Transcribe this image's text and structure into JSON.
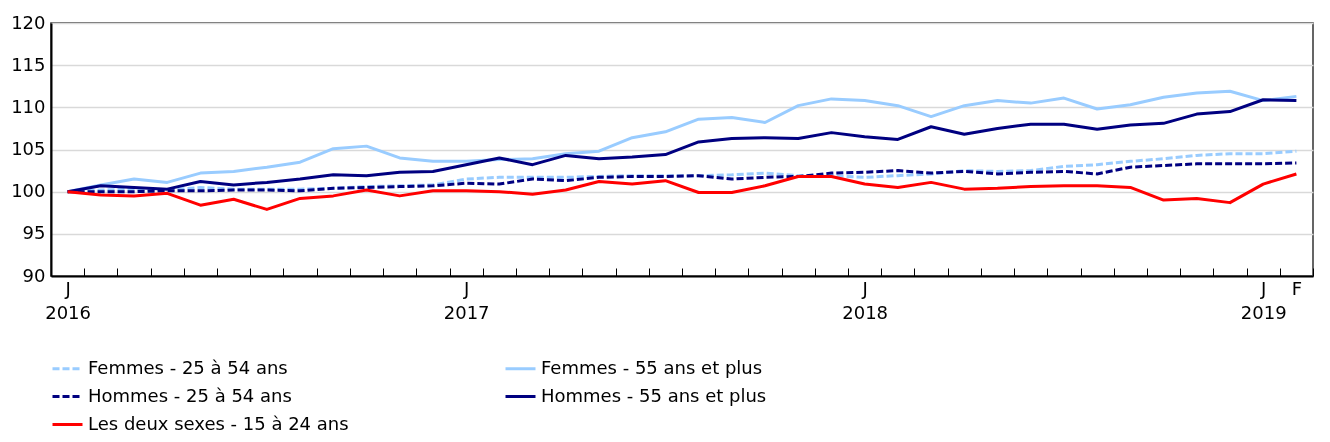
{
  "chart_data": {
    "type": "line",
    "categories": [
      "J 2016",
      null,
      null,
      null,
      null,
      null,
      null,
      null,
      null,
      null,
      null,
      null,
      "J 2017",
      null,
      null,
      null,
      null,
      null,
      null,
      null,
      null,
      null,
      null,
      null,
      "J 2018",
      null,
      null,
      null,
      null,
      null,
      null,
      null,
      null,
      null,
      null,
      null,
      "J 2019",
      "F"
    ],
    "ylim": [
      90,
      120
    ],
    "yticks": [
      90,
      95,
      100,
      105,
      110,
      115,
      120
    ],
    "grid": "y",
    "legend": "bottom",
    "series": [
      {
        "name": "Femmes - 25 à 54 ans",
        "color": "#99ccff",
        "line_style": "dashed",
        "values": [
          100,
          100.2,
          100.3,
          100.2,
          100.5,
          100.3,
          100.3,
          100.3,
          100.4,
          100.6,
          100.7,
          100.8,
          101.5,
          101.7,
          101.7,
          101.7,
          101.8,
          101.9,
          101.9,
          101.9,
          102.0,
          102.2,
          101.9,
          101.9,
          101.7,
          101.9,
          102.1,
          102.5,
          102.4,
          102.5,
          103.0,
          103.2,
          103.6,
          103.9,
          104.3,
          104.5,
          104.5,
          104.8
        ]
      },
      {
        "name": "Femmes - 55 ans et plus",
        "color": "#99ccff",
        "line_style": "solid",
        "values": [
          100,
          100.8,
          101.5,
          101.1,
          102.2,
          102.4,
          102.9,
          103.5,
          105.1,
          105.4,
          104.0,
          103.6,
          103.6,
          103.8,
          103.9,
          104.5,
          104.8,
          106.4,
          107.1,
          108.6,
          108.8,
          108.2,
          110.2,
          111.0,
          110.8,
          110.2,
          108.9,
          110.2,
          110.8,
          110.5,
          111.1,
          109.8,
          110.3,
          111.2,
          111.7,
          111.9,
          110.8,
          111.3
        ]
      },
      {
        "name": "Hommes - 25 à 54 ans",
        "color": "#000080",
        "line_style": "dashed",
        "values": [
          100,
          100,
          100,
          100.1,
          100.1,
          100.2,
          100.2,
          100.1,
          100.4,
          100.5,
          100.6,
          100.7,
          101.0,
          100.9,
          101.5,
          101.3,
          101.7,
          101.8,
          101.8,
          101.9,
          101.5,
          101.7,
          101.8,
          102.2,
          102.3,
          102.5,
          102.2,
          102.4,
          102.1,
          102.3,
          102.4,
          102.1,
          102.9,
          103.1,
          103.3,
          103.3,
          103.3,
          103.4
        ]
      },
      {
        "name": "Hommes - 55 ans et plus",
        "color": "#000080",
        "line_style": "solid",
        "values": [
          100,
          100.7,
          100.5,
          100.3,
          101.2,
          100.8,
          101.1,
          101.5,
          102.0,
          101.9,
          102.3,
          102.4,
          103.2,
          104.0,
          103.2,
          104.3,
          103.9,
          104.1,
          104.4,
          105.9,
          106.3,
          106.4,
          106.3,
          107.0,
          106.5,
          106.2,
          107.7,
          106.8,
          107.5,
          108.0,
          108.0,
          107.4,
          107.9,
          108.1,
          109.2,
          109.5,
          110.9,
          110.8
        ]
      },
      {
        "name": "Les deux sexes - 15 à 24 ans",
        "color": "#ff0000",
        "line_style": "solid",
        "values": [
          100,
          99.6,
          99.5,
          99.8,
          98.4,
          99.1,
          97.9,
          99.2,
          99.5,
          100.2,
          99.5,
          100.1,
          100.1,
          100.0,
          99.7,
          100.2,
          101.2,
          100.9,
          101.3,
          99.9,
          99.9,
          100.7,
          101.8,
          101.8,
          100.9,
          100.5,
          101.1,
          100.3,
          100.4,
          100.6,
          100.7,
          100.7,
          100.5,
          99.0,
          99.2,
          98.7,
          100.9,
          102.1
        ]
      }
    ]
  }
}
